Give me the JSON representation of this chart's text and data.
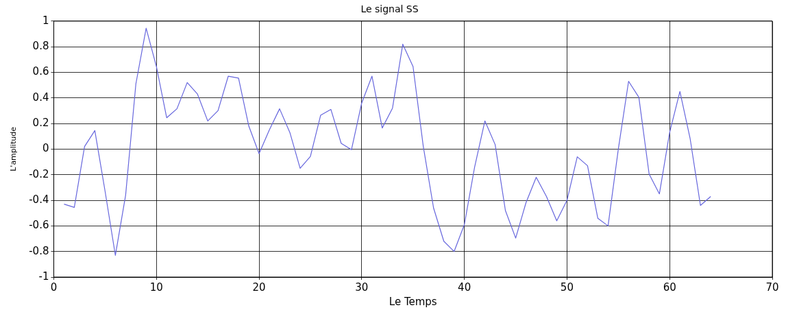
{
  "chart_data": {
    "type": "line",
    "title": "Le signal SS",
    "xlabel": "Le Temps",
    "ylabel": "L'amplitude",
    "x": [
      1,
      2,
      3,
      4,
      5,
      6,
      7,
      8,
      9,
      10,
      11,
      12,
      13,
      14,
      15,
      16,
      17,
      18,
      19,
      20,
      21,
      22,
      23,
      24,
      25,
      26,
      27,
      28,
      29,
      30,
      31,
      32,
      33,
      34,
      35,
      36,
      37,
      38,
      39,
      40,
      41,
      42,
      43,
      44,
      45,
      46,
      47,
      48,
      49,
      50,
      51,
      52,
      53,
      54,
      55,
      56,
      57,
      58,
      59,
      60,
      61,
      62,
      63,
      64
    ],
    "series": [
      {
        "color": "#6666dd",
        "values": [
          -0.43,
          -0.455,
          0.02,
          0.145,
          -0.33,
          -0.83,
          -0.36,
          0.51,
          0.945,
          0.645,
          0.245,
          0.315,
          0.52,
          0.43,
          0.22,
          0.3,
          0.57,
          0.555,
          0.18,
          -0.035,
          0.15,
          0.315,
          0.13,
          -0.15,
          -0.057,
          0.265,
          0.31,
          0.045,
          -0.005,
          0.36,
          0.57,
          0.165,
          0.32,
          0.82,
          0.645,
          0.02,
          -0.46,
          -0.72,
          -0.8,
          -0.59,
          -0.14,
          0.22,
          0.035,
          -0.48,
          -0.695,
          -0.42,
          -0.22,
          -0.37,
          -0.56,
          -0.4,
          -0.06,
          -0.13,
          -0.54,
          -0.6,
          0.0,
          0.53,
          0.405,
          -0.195,
          -0.35,
          0.13,
          0.45,
          0.08,
          -0.44,
          -0.37
        ]
      }
    ],
    "xlim": [
      0,
      70
    ],
    "xticks": [
      0,
      10,
      20,
      30,
      40,
      50,
      60,
      70
    ],
    "ylim": [
      -1,
      1
    ],
    "yticks": [
      -1,
      -0.8,
      -0.6,
      -0.4,
      -0.2,
      0,
      0.2,
      0.4,
      0.6,
      0.8,
      1
    ],
    "grid": true,
    "legend": false,
    "marker": "none",
    "line_style": "solid"
  }
}
